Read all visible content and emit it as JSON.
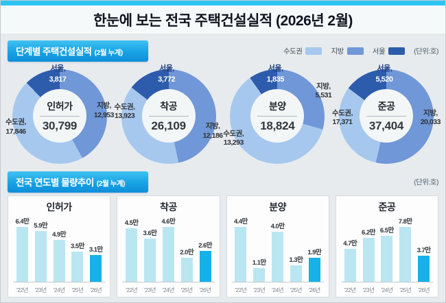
{
  "title": "한눈에 보는 전국 주택건설실적 (2026년 2월)",
  "colors": {
    "accent_cyan": "#2ec4f3",
    "capital": "#a7c8ee",
    "province": "#7097d7",
    "seoul": "#2d5cac",
    "bar_light": "#bae6f2",
    "bar_highlight": "#15b2e9"
  },
  "sections": [
    {
      "title": "단계별 주택건설실적",
      "subtitle": "(2월 누계)"
    },
    {
      "title": "전국 연도별 물량추이",
      "subtitle": "(2월 누계)"
    }
  ],
  "legend": {
    "items": [
      {
        "label": "수도권",
        "color": "#a7c8ee"
      },
      {
        "label": "지방",
        "color": "#7097d7"
      },
      {
        "label": "서울",
        "color": "#2d5cac"
      }
    ],
    "unit": "(단위:호)"
  },
  "bar_section_unit": "(단위:호)",
  "chart_data": [
    {
      "type": "pie",
      "subtype": "donut",
      "title": "단계별 주택건설실적 (2월 누계)",
      "unit": "호",
      "legend_position": "top-right",
      "charts": [
        {
          "name": "인허가",
          "total": 30799,
          "total_display": "30,799",
          "segments": [
            {
              "region": "지방,",
              "value": 12953,
              "display": "12,953"
            },
            {
              "region": "수도권,",
              "value": 17846,
              "display": "17,846"
            },
            {
              "region": "서울,",
              "value": 3817,
              "display": "3,817"
            }
          ]
        },
        {
          "name": "착공",
          "total": 26109,
          "total_display": "26,109",
          "segments": [
            {
              "region": "지방,",
              "value": 12186,
              "display": "12,186"
            },
            {
              "region": "수도권,",
              "value": 13923,
              "display": "13,923"
            },
            {
              "region": "서울,",
              "value": 3772,
              "display": "3,772"
            }
          ]
        },
        {
          "name": "분양",
          "total": 18824,
          "total_display": "18,824",
          "segments": [
            {
              "region": "지방,",
              "value": 5531,
              "display": "5,531"
            },
            {
              "region": "수도권,",
              "value": 13293,
              "display": "13,293"
            },
            {
              "region": "서울,",
              "value": 1835,
              "display": "1,835"
            }
          ]
        },
        {
          "name": "준공",
          "total": 37404,
          "total_display": "37,404",
          "segments": [
            {
              "region": "지방,",
              "value": 20033,
              "display": "20,033"
            },
            {
              "region": "수도권,",
              "value": 17371,
              "display": "17,371"
            },
            {
              "region": "서울,",
              "value": 5520,
              "display": "5,520"
            }
          ]
        }
      ]
    },
    {
      "type": "bar",
      "title": "전국 연도별 물량추이 (2월 누계)",
      "unit": "만 호",
      "categories": [
        "'22년",
        "'23년",
        "'24년",
        "'25년",
        "'26년"
      ],
      "highlight_index": 4,
      "charts": [
        {
          "name": "인허가",
          "values": [
            6.4,
            5.9,
            4.9,
            3.5,
            3.1
          ],
          "labels": [
            "6.4만",
            "5.9만",
            "4.9만",
            "3.5만",
            "3.1만"
          ]
        },
        {
          "name": "착공",
          "values": [
            4.5,
            3.6,
            4.6,
            2.0,
            2.6
          ],
          "labels": [
            "4.5만",
            "3.6만",
            "4.6만",
            "2.0만",
            "2.6만"
          ]
        },
        {
          "name": "분양",
          "values": [
            4.4,
            1.1,
            4.0,
            1.3,
            1.9
          ],
          "labels": [
            "4.4만",
            "1.1만",
            "4.0만",
            "1.3만",
            "1.9만"
          ]
        },
        {
          "name": "준공",
          "values": [
            4.7,
            6.2,
            6.5,
            7.8,
            3.7
          ],
          "labels": [
            "4.7만",
            "6.2만",
            "6.5만",
            "7.8만",
            "3.7만"
          ]
        }
      ]
    }
  ]
}
